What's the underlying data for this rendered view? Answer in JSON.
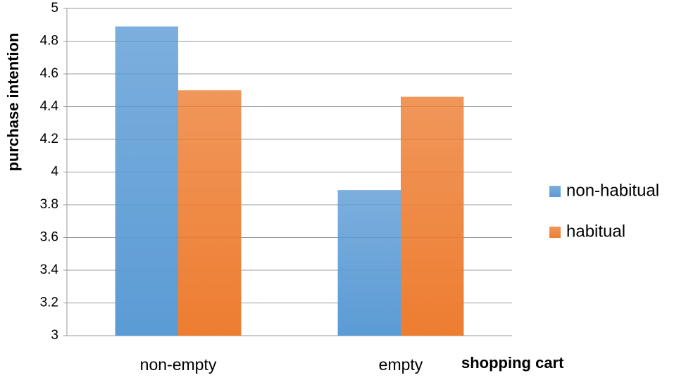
{
  "chart_data": {
    "type": "bar",
    "x_label": "shopping cart",
    "y_label": "purchase intention",
    "categories": [
      "non-empty",
      "empty"
    ],
    "series": [
      {
        "name": "non-habitual",
        "color": "#5b9bd5",
        "values": [
          4.89,
          3.89
        ]
      },
      {
        "name": "habitual",
        "color": "#ed7d31",
        "values": [
          4.5,
          4.46
        ]
      }
    ],
    "ylim": [
      3,
      5
    ],
    "yticks": [
      3,
      3.2,
      3.4,
      3.6,
      3.8,
      4,
      4.2,
      4.4,
      4.6,
      4.8,
      5
    ],
    "grid": true,
    "legend": "right"
  }
}
